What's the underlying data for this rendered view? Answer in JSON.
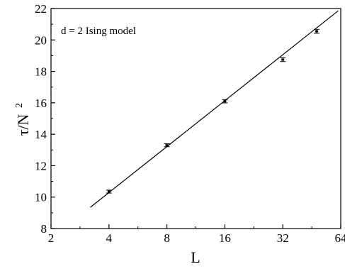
{
  "chart_data": {
    "type": "scatter",
    "annotation": "d = 2 Ising model",
    "xlabel": "L",
    "ylabel_main": "τ/N",
    "ylabel_sup": "2",
    "x_scale": "log2",
    "xlim": [
      2,
      64
    ],
    "ylim": [
      8,
      22
    ],
    "x_ticks": [
      2,
      4,
      8,
      16,
      32,
      64
    ],
    "x_tick_labels": [
      "2",
      "4",
      "8",
      "16",
      "32",
      "64"
    ],
    "y_ticks": [
      8,
      10,
      12,
      14,
      16,
      18,
      20,
      22
    ],
    "y_tick_labels": [
      "8",
      "10",
      "12",
      "14",
      "16",
      "18",
      "20",
      "22"
    ],
    "grid": false,
    "points": [
      {
        "x": 4,
        "y": 10.35,
        "err": 0.05
      },
      {
        "x": 8,
        "y": 13.3,
        "err": 0.05
      },
      {
        "x": 16,
        "y": 16.1,
        "err": 0.06
      },
      {
        "x": 32,
        "y": 18.75,
        "err": 0.08
      },
      {
        "x": 48,
        "y": 20.55,
        "err": 0.08
      }
    ],
    "fit_line": {
      "x_start": 3.2,
      "y_start": 9.35,
      "x_end": 62,
      "y_end": 21.85
    }
  }
}
